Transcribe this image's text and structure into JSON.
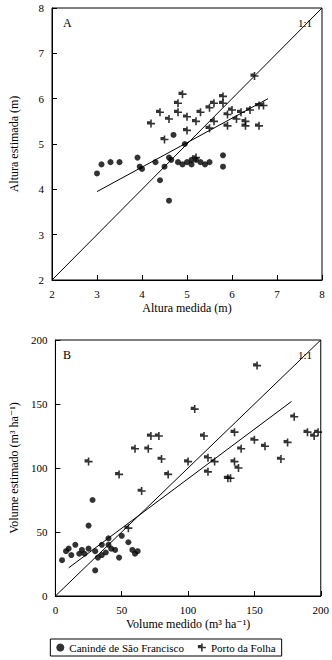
{
  "chart_data": [
    {
      "type": "scatter",
      "x_label": "Altura medida (m)",
      "y_label": "Altura estimada (m)",
      "annotations": [
        "A",
        "1:1"
      ],
      "xlim": [
        2,
        8
      ],
      "ylim": [
        2,
        8
      ],
      "xticks": [
        2,
        3,
        4,
        5,
        6,
        7,
        8
      ],
      "yticks": [
        2,
        3,
        4,
        5,
        6,
        7,
        8
      ],
      "series": [
        {
          "name": "Canindé de São Francisco",
          "type": "scatter",
          "marker": "circle",
          "color": "#000000",
          "values": [
            [
              3.0,
              4.35
            ],
            [
              3.1,
              4.55
            ],
            [
              3.3,
              4.6
            ],
            [
              3.5,
              4.6
            ],
            [
              3.9,
              4.7
            ],
            [
              3.95,
              4.5
            ],
            [
              4.0,
              4.45
            ],
            [
              4.3,
              4.6
            ],
            [
              4.4,
              4.2
            ],
            [
              4.5,
              4.5
            ],
            [
              4.6,
              4.7
            ],
            [
              4.65,
              4.65
            ],
            [
              4.6,
              3.75
            ],
            [
              4.7,
              5.2
            ],
            [
              4.8,
              4.6
            ],
            [
              4.9,
              4.55
            ],
            [
              4.95,
              5.0
            ],
            [
              5.0,
              4.6
            ],
            [
              5.1,
              4.55
            ],
            [
              5.1,
              4.65
            ],
            [
              5.2,
              4.65
            ],
            [
              5.3,
              4.6
            ],
            [
              5.4,
              4.55
            ],
            [
              5.5,
              4.6
            ],
            [
              5.8,
              4.75
            ],
            [
              5.8,
              4.5
            ]
          ]
        },
        {
          "name": "Porto da Folha",
          "type": "scatter",
          "marker": "plus",
          "color": "#000000",
          "values": [
            [
              4.2,
              5.45
            ],
            [
              4.4,
              5.7
            ],
            [
              4.6,
              5.55
            ],
            [
              4.8,
              5.9
            ],
            [
              4.8,
              5.7
            ],
            [
              4.9,
              6.1
            ],
            [
              5.0,
              5.3
            ],
            [
              5.0,
              5.6
            ],
            [
              5.2,
              5.5
            ],
            [
              5.3,
              5.7
            ],
            [
              5.5,
              5.35
            ],
            [
              5.5,
              5.8
            ],
            [
              5.6,
              5.9
            ],
            [
              5.6,
              5.5
            ],
            [
              5.8,
              6.05
            ],
            [
              5.8,
              5.9
            ],
            [
              5.9,
              5.4
            ],
            [
              5.9,
              5.65
            ],
            [
              6.0,
              5.75
            ],
            [
              6.1,
              5.55
            ],
            [
              6.2,
              5.7
            ],
            [
              6.3,
              5.4
            ],
            [
              6.3,
              5.5
            ],
            [
              6.4,
              5.75
            ],
            [
              6.5,
              6.5
            ],
            [
              6.6,
              5.85
            ],
            [
              6.6,
              5.4
            ],
            [
              6.7,
              5.85
            ],
            [
              5.2,
              4.7
            ],
            [
              4.5,
              5.1
            ]
          ]
        },
        {
          "type": "line",
          "line_style": "solid",
          "color": "#000000",
          "values": [
            [
              2,
              2
            ],
            [
              8,
              8
            ]
          ]
        },
        {
          "type": "line",
          "line_style": "solid",
          "color": "#000000",
          "values": [
            [
              3.0,
              3.95
            ],
            [
              6.8,
              6.0
            ]
          ]
        }
      ]
    },
    {
      "type": "scatter",
      "x_label": "Volume medido (m³ ha⁻¹)",
      "y_label": "Volume estimado (m³ ha⁻¹)",
      "annotations": [
        "B",
        "1:1"
      ],
      "xlim": [
        0,
        200
      ],
      "ylim": [
        0,
        200
      ],
      "xticks": [
        0,
        50,
        100,
        150,
        200
      ],
      "yticks": [
        0,
        50,
        100,
        150,
        200
      ],
      "legend": "bottom",
      "series": [
        {
          "name": "Canindé de São Francisco",
          "type": "scatter",
          "marker": "circle",
          "color": "#000000",
          "values": [
            [
              5,
              28
            ],
            [
              8,
              35
            ],
            [
              10,
              37
            ],
            [
              12,
              32
            ],
            [
              15,
              40
            ],
            [
              18,
              33
            ],
            [
              20,
              36
            ],
            [
              22,
              33
            ],
            [
              25,
              37
            ],
            [
              25,
              55
            ],
            [
              28,
              75
            ],
            [
              30,
              20
            ],
            [
              30,
              35
            ],
            [
              32,
              30
            ],
            [
              35,
              40
            ],
            [
              35,
              32
            ],
            [
              38,
              34
            ],
            [
              40,
              40
            ],
            [
              40,
              45
            ],
            [
              42,
              37
            ],
            [
              45,
              36
            ],
            [
              48,
              30
            ],
            [
              50,
              47
            ],
            [
              55,
              42
            ],
            [
              58,
              36
            ],
            [
              60,
              33
            ],
            [
              62,
              35
            ]
          ]
        },
        {
          "name": "Porto da Folha",
          "type": "scatter",
          "marker": "plus",
          "color": "#000000",
          "values": [
            [
              25,
              105
            ],
            [
              48,
              95
            ],
            [
              55,
              53
            ],
            [
              60,
              115
            ],
            [
              65,
              82
            ],
            [
              70,
              115
            ],
            [
              72,
              125
            ],
            [
              78,
              125
            ],
            [
              80,
              107
            ],
            [
              85,
              95
            ],
            [
              100,
              105
            ],
            [
              105,
              146
            ],
            [
              112,
              125
            ],
            [
              115,
              108
            ],
            [
              115,
              97
            ],
            [
              120,
              105
            ],
            [
              130,
              92
            ],
            [
              132,
              92
            ],
            [
              135,
              105
            ],
            [
              135,
              128
            ],
            [
              138,
              100
            ],
            [
              140,
              115
            ],
            [
              150,
              122
            ],
            [
              152,
              180
            ],
            [
              158,
              117
            ],
            [
              170,
              107
            ],
            [
              175,
              120
            ],
            [
              180,
              140
            ],
            [
              190,
              128
            ],
            [
              195,
              125
            ],
            [
              198,
              128
            ]
          ]
        },
        {
          "type": "line",
          "line_style": "solid",
          "color": "#000000",
          "values": [
            [
              0,
              0
            ],
            [
              200,
              200
            ]
          ]
        },
        {
          "type": "line",
          "line_style": "solid",
          "color": "#000000",
          "values": [
            [
              10,
              22
            ],
            [
              178,
              152
            ]
          ]
        }
      ]
    }
  ]
}
